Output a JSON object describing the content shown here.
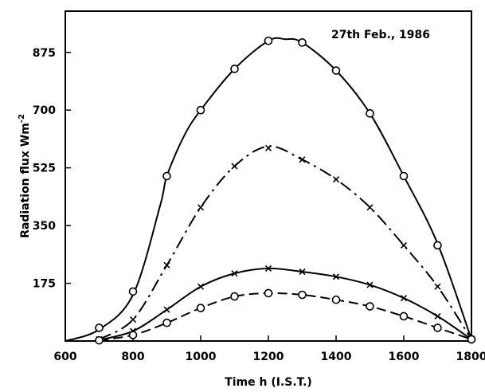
{
  "chart_data": {
    "type": "line",
    "title": "",
    "annotation": "27th Feb., 1986",
    "xlabel": "Time h (I.S.T.)",
    "ylabel": "Radiation flux Wm",
    "ylabel_sup": "-2",
    "xlim": [
      600,
      1800
    ],
    "ylim": [
      0,
      1000
    ],
    "xticks": [
      600,
      800,
      1000,
      1200,
      1400,
      1600,
      1800
    ],
    "yticks": [
      175,
      350,
      525,
      700,
      875
    ],
    "grid": false,
    "series": [
      {
        "style": "solid",
        "marker": "circle",
        "curve": [
          [
            600,
            0
          ],
          [
            700,
            35
          ],
          [
            800,
            140
          ],
          [
            880,
            410
          ],
          [
            900,
            500
          ],
          [
            950,
            620
          ],
          [
            1000,
            700
          ],
          [
            1100,
            825
          ],
          [
            1200,
            910
          ],
          [
            1250,
            915
          ],
          [
            1300,
            905
          ],
          [
            1400,
            820
          ],
          [
            1500,
            690
          ],
          [
            1600,
            500
          ],
          [
            1700,
            295
          ],
          [
            1800,
            5
          ]
        ],
        "points": [
          [
            700,
            40
          ],
          [
            800,
            150
          ],
          [
            900,
            500
          ],
          [
            1000,
            700
          ],
          [
            1100,
            825
          ],
          [
            1200,
            910
          ],
          [
            1300,
            905
          ],
          [
            1400,
            820
          ],
          [
            1500,
            690
          ],
          [
            1600,
            500
          ],
          [
            1700,
            290
          ],
          [
            1800,
            5
          ]
        ]
      },
      {
        "style": "dashdot",
        "marker": "x",
        "curve": [
          [
            700,
            5
          ],
          [
            800,
            65
          ],
          [
            900,
            230
          ],
          [
            1000,
            405
          ],
          [
            1100,
            530
          ],
          [
            1200,
            590
          ],
          [
            1300,
            550
          ],
          [
            1400,
            490
          ],
          [
            1500,
            405
          ],
          [
            1600,
            290
          ],
          [
            1700,
            165
          ],
          [
            1800,
            5
          ]
        ],
        "points": [
          [
            700,
            5
          ],
          [
            800,
            65
          ],
          [
            900,
            230
          ],
          [
            1000,
            405
          ],
          [
            1100,
            530
          ],
          [
            1200,
            585
          ],
          [
            1300,
            550
          ],
          [
            1400,
            490
          ],
          [
            1500,
            405
          ],
          [
            1600,
            290
          ],
          [
            1700,
            165
          ],
          [
            1800,
            5
          ]
        ]
      },
      {
        "style": "solid",
        "marker": "x",
        "curve": [
          [
            700,
            3
          ],
          [
            800,
            30
          ],
          [
            900,
            95
          ],
          [
            1000,
            165
          ],
          [
            1100,
            205
          ],
          [
            1200,
            220
          ],
          [
            1300,
            210
          ],
          [
            1400,
            195
          ],
          [
            1500,
            170
          ],
          [
            1600,
            130
          ],
          [
            1700,
            75
          ],
          [
            1800,
            5
          ]
        ],
        "points": [
          [
            700,
            3
          ],
          [
            800,
            30
          ],
          [
            900,
            95
          ],
          [
            1000,
            165
          ],
          [
            1100,
            205
          ],
          [
            1200,
            220
          ],
          [
            1300,
            210
          ],
          [
            1400,
            195
          ],
          [
            1500,
            170
          ],
          [
            1600,
            130
          ],
          [
            1700,
            75
          ],
          [
            1800,
            5
          ]
        ]
      },
      {
        "style": "dashed",
        "marker": "circle",
        "curve": [
          [
            700,
            2
          ],
          [
            800,
            18
          ],
          [
            900,
            55
          ],
          [
            1000,
            100
          ],
          [
            1100,
            135
          ],
          [
            1200,
            145
          ],
          [
            1300,
            140
          ],
          [
            1400,
            125
          ],
          [
            1500,
            105
          ],
          [
            1600,
            75
          ],
          [
            1700,
            40
          ],
          [
            1800,
            5
          ]
        ],
        "points": [
          [
            700,
            2
          ],
          [
            800,
            18
          ],
          [
            900,
            55
          ],
          [
            1000,
            100
          ],
          [
            1100,
            135
          ],
          [
            1200,
            145
          ],
          [
            1300,
            140
          ],
          [
            1400,
            125
          ],
          [
            1500,
            105
          ],
          [
            1600,
            75
          ],
          [
            1700,
            40
          ],
          [
            1800,
            5
          ]
        ]
      }
    ]
  }
}
